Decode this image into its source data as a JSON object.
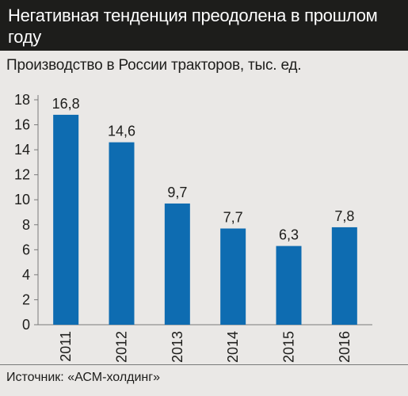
{
  "header": {
    "title": "Негативная тенденция преодолена в прошлом году"
  },
  "subtitle": "Производство в России тракторов, тыс. ед.",
  "source": "Источник: «АСМ-холдинг»",
  "colors": {
    "bar": "#0e6cb1",
    "header_bg": "#1d1d1b",
    "background": "#eae8e6"
  },
  "chart_data": {
    "type": "bar",
    "title": "Производство в России тракторов, тыс. ед.",
    "categories": [
      "2011",
      "2012",
      "2013",
      "2014",
      "2015",
      "2016"
    ],
    "values": [
      16.8,
      14.6,
      9.7,
      7.7,
      6.3,
      7.8
    ],
    "value_labels": [
      "16,8",
      "14,6",
      "9,7",
      "7,7",
      "6,3",
      "7,8"
    ],
    "yticks": [
      0,
      2,
      4,
      6,
      8,
      10,
      12,
      14,
      16,
      18
    ],
    "ylim": [
      0,
      18
    ],
    "grid": false,
    "legend": "none"
  }
}
